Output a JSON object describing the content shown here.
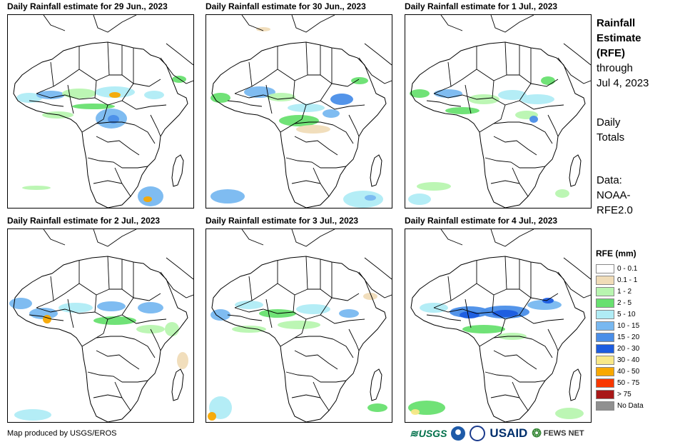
{
  "panels": [
    {
      "title": "Daily Rainfall estimate for 29 Jun., 2023",
      "variant": 0
    },
    {
      "title": "Daily Rainfall estimate for 30 Jun., 2023",
      "variant": 1
    },
    {
      "title": "Daily Rainfall estimate for 1 Jul., 2023",
      "variant": 2
    },
    {
      "title": "Daily Rainfall estimate for 2 Jul., 2023",
      "variant": 3
    },
    {
      "title": "Daily Rainfall estimate for 3 Jul., 2023",
      "variant": 4
    },
    {
      "title": "Daily Rainfall estimate for 4 Jul., 2023",
      "variant": 5
    }
  ],
  "sidebar": {
    "title_line1": "Rainfall",
    "title_line2": "Estimate",
    "title_line3": "(RFE)",
    "through_label": "through",
    "through_date": "Jul 4, 2023",
    "daily_line1": "Daily",
    "daily_line2": "Totals",
    "data_line1": "Data:",
    "data_line2": "NOAA-",
    "data_line3": "RFE2.0"
  },
  "legend": {
    "title": "RFE (mm)",
    "items": [
      {
        "label": "0 - 0.1",
        "color": "#ffffff"
      },
      {
        "label": "0.1 - 1",
        "color": "#f0dcb8"
      },
      {
        "label": "1 - 2",
        "color": "#b8f5b0"
      },
      {
        "label": "2 - 5",
        "color": "#68e070"
      },
      {
        "label": "5 - 10",
        "color": "#b0ecf5"
      },
      {
        "label": "10 - 15",
        "color": "#78b8f0"
      },
      {
        "label": "15 - 20",
        "color": "#4a8ee8"
      },
      {
        "label": "20 - 30",
        "color": "#1c5ce0"
      },
      {
        "label": "30 - 40",
        "color": "#f8e888"
      },
      {
        "label": "40 - 50",
        "color": "#f8a800"
      },
      {
        "label": "50 - 75",
        "color": "#f83800"
      },
      {
        "label": "> 75",
        "color": "#a81818"
      },
      {
        "label": "No Data",
        "color": "#909090"
      }
    ]
  },
  "credit": "Map produced by USGS/EROS",
  "logos": {
    "usgs": "USGS",
    "usaid": "USAID",
    "fews": "FEWS NET"
  }
}
